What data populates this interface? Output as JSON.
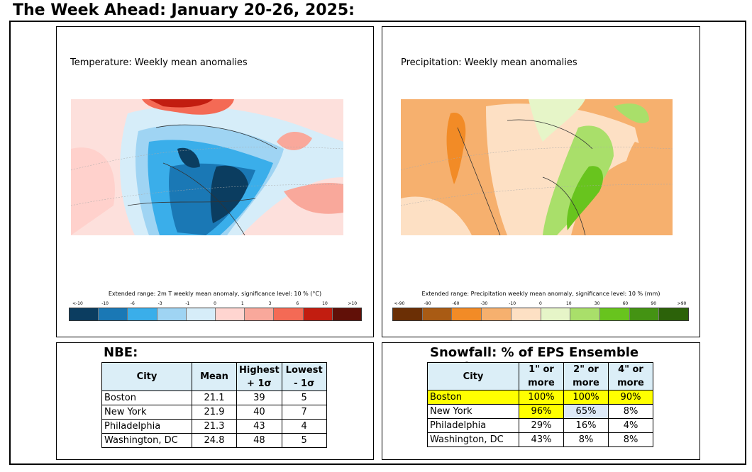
{
  "page": {
    "title": "The Week Ahead: January 20-26, 2025:"
  },
  "temperature_panel": {
    "title": "Temperature: Weekly mean anomalies",
    "colorbar_label": "Extended range: 2m T weekly mean anomaly, significance level: 10 % (°C)",
    "ticks": [
      "<-10",
      "-10",
      "-6",
      "-3",
      "-1",
      "0",
      "1",
      "3",
      "6",
      "10",
      ">10"
    ],
    "colors": [
      "#0b3d60",
      "#1a78b5",
      "#3aaeea",
      "#9fd4f3",
      "#d6edf9",
      "#ffd5d0",
      "#f9a89b",
      "#f46a55",
      "#c21d10",
      "#611008"
    ]
  },
  "precipitation_panel": {
    "title": "Precipitation: Weekly mean anomalies",
    "colorbar_label": "Extended range: Precipitation weekly mean anomaly, significance level: 10 % (mm)",
    "ticks": [
      "<-90",
      "-90",
      "-60",
      "-30",
      "-10",
      "0",
      "10",
      "30",
      "60",
      "90",
      ">90"
    ],
    "colors": [
      "#6b2f05",
      "#a95b14",
      "#f28b26",
      "#f6b06e",
      "#fde0c4",
      "#e6f5c8",
      "#a9df6a",
      "#68c41e",
      "#449313",
      "#2c6209"
    ]
  },
  "nbe": {
    "heading": "NBE:",
    "headers": [
      "City",
      "Mean",
      "Highest + 1σ",
      "Lowest - 1σ"
    ],
    "rows": [
      [
        "Boston",
        "21.1",
        "39",
        "5"
      ],
      [
        "New York",
        "21.9",
        "40",
        "7"
      ],
      [
        "Philadelphia",
        "21.3",
        "43",
        "4"
      ],
      [
        "Washington, DC",
        "24.8",
        "48",
        "5"
      ]
    ]
  },
  "snowfall": {
    "heading": "Snowfall: % of EPS Ensemble Members:",
    "headers": [
      "City",
      "1\" or more",
      "2\" or more",
      "4\" or more"
    ],
    "rows": [
      [
        "Boston",
        "100%",
        "100%",
        "90%"
      ],
      [
        "New York",
        "96%",
        "65%",
        "8%"
      ],
      [
        "Philadelphia",
        "29%",
        "16%",
        "4%"
      ],
      [
        "Washington, DC",
        "43%",
        "8%",
        "8%"
      ]
    ]
  }
}
